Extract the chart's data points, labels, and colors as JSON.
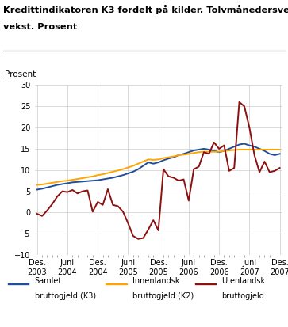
{
  "title_line1": "Kredittindikatoren K3 fordelt på kilder. Tolvmånedersvekst.",
  "title_line2": "Prosent",
  "prosent_label": "Prosent",
  "ylim": [
    -10,
    30
  ],
  "yticks": [
    -10,
    -5,
    0,
    5,
    10,
    15,
    20,
    25,
    30
  ],
  "xlabels": [
    "Des.\n2003",
    "Juni\n2004",
    "Des.\n2004",
    "Juni\n2005",
    "Des.\n2005",
    "Juni\n2006",
    "Des.\n2006",
    "Juni\n2007",
    "Des.\n2007"
  ],
  "x_positions": [
    0,
    6,
    12,
    18,
    24,
    30,
    36,
    42,
    48
  ],
  "xlim": [
    -0.5,
    48.5
  ],
  "samlet": [
    5.4,
    5.6,
    5.9,
    6.2,
    6.5,
    6.7,
    6.9,
    7.1,
    7.2,
    7.3,
    7.4,
    7.5,
    7.6,
    7.8,
    8.0,
    8.2,
    8.5,
    8.8,
    9.2,
    9.6,
    10.2,
    11.0,
    11.8,
    11.5,
    11.8,
    12.3,
    12.7,
    13.0,
    13.5,
    13.8,
    14.2,
    14.6,
    14.8,
    15.0,
    14.8,
    14.5,
    14.2,
    14.5,
    15.0,
    15.5,
    16.0,
    16.2,
    15.8,
    15.5,
    15.0,
    14.5,
    13.8,
    13.5,
    13.8
  ],
  "innenlandsk": [
    6.5,
    6.6,
    6.8,
    7.0,
    7.2,
    7.4,
    7.5,
    7.7,
    7.9,
    8.1,
    8.3,
    8.5,
    8.8,
    9.0,
    9.3,
    9.6,
    9.9,
    10.2,
    10.6,
    11.0,
    11.5,
    12.0,
    12.5,
    12.4,
    12.5,
    12.8,
    13.0,
    13.2,
    13.5,
    13.6,
    13.8,
    14.0,
    14.2,
    14.3,
    14.3,
    14.3,
    14.3,
    14.5,
    14.6,
    14.7,
    14.8,
    14.8,
    14.8,
    14.8,
    14.8,
    14.8,
    14.8,
    14.8,
    14.8
  ],
  "utenlandsk": [
    -0.3,
    -0.8,
    0.5,
    2.0,
    3.8,
    5.0,
    4.8,
    5.3,
    4.5,
    5.0,
    5.2,
    0.2,
    2.5,
    1.8,
    5.5,
    1.8,
    1.5,
    0.2,
    -2.5,
    -5.5,
    -6.2,
    -6.0,
    -4.0,
    -1.8,
    -4.2,
    10.2,
    8.5,
    8.2,
    7.5,
    7.8,
    2.8,
    10.2,
    10.8,
    14.2,
    13.8,
    16.5,
    15.0,
    15.8,
    9.8,
    10.5,
    26.0,
    25.0,
    20.0,
    13.5,
    9.5,
    12.0,
    9.5,
    9.8,
    10.5
  ],
  "samlet_color": "#1F4E9B",
  "innenlandsk_color": "#FFA500",
  "utenlandsk_color": "#8B1010",
  "legend_labels": [
    "Samlet\nbruttogjeld (K3)",
    "Innenlandsk\nbruttogjeld (K2)",
    "Utenlandsk\nbruttogjeld"
  ],
  "background_color": "#ffffff",
  "grid_color": "#cccccc",
  "linewidth": 1.4
}
